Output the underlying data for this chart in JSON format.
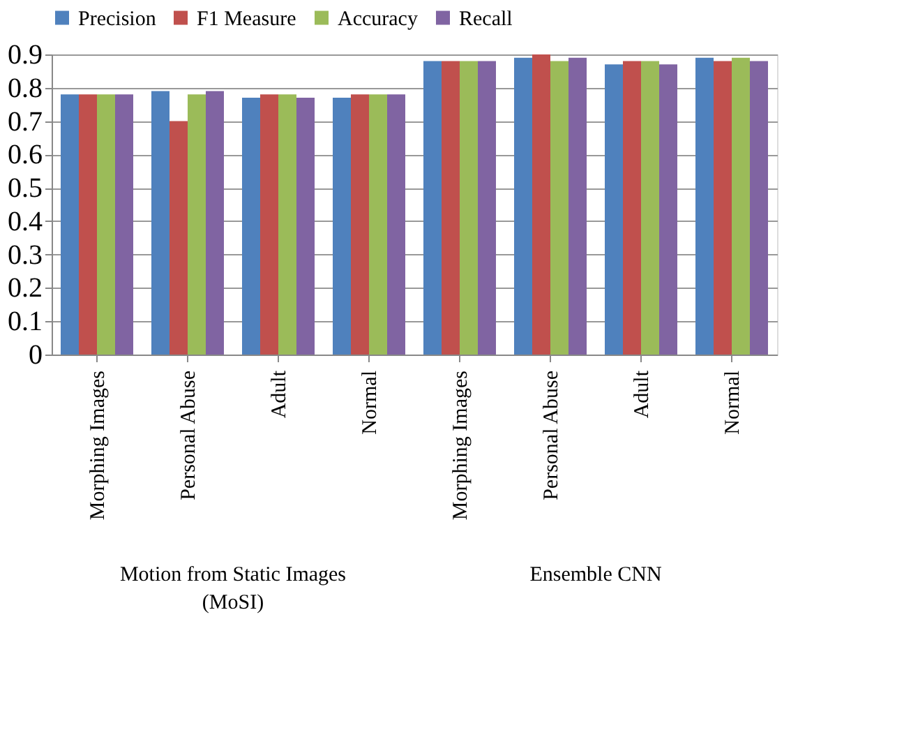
{
  "chart_data": {
    "type": "bar",
    "categories": [
      "Morphing Images",
      "Personal Abuse",
      "Adult",
      "Normal",
      "Morphing Images",
      "Personal Abuse",
      "Adult",
      "Normal"
    ],
    "series": [
      {
        "name": "Precision",
        "color": "#4f81bd",
        "values": [
          0.78,
          0.79,
          0.77,
          0.77,
          0.88,
          0.89,
          0.87,
          0.89
        ]
      },
      {
        "name": "F1 Measure",
        "color": "#c0504d",
        "values": [
          0.78,
          0.7,
          0.78,
          0.78,
          0.88,
          0.9,
          0.88,
          0.88
        ]
      },
      {
        "name": "Accuracy",
        "color": "#9bbb59",
        "values": [
          0.78,
          0.78,
          0.78,
          0.78,
          0.88,
          0.88,
          0.88,
          0.89
        ]
      },
      {
        "name": "Recall",
        "color": "#8064a2",
        "values": [
          0.78,
          0.79,
          0.77,
          0.78,
          0.88,
          0.89,
          0.87,
          0.88
        ]
      }
    ],
    "annotations": [
      "Motion from Static Images\n(MoSI)",
      "Ensemble CNN"
    ],
    "ylim": [
      0,
      0.9
    ],
    "yticks": [
      0,
      0.1,
      0.2,
      0.3,
      0.4,
      0.5,
      0.6,
      0.7,
      0.8,
      0.9
    ],
    "grid": "y",
    "legend": "top"
  }
}
